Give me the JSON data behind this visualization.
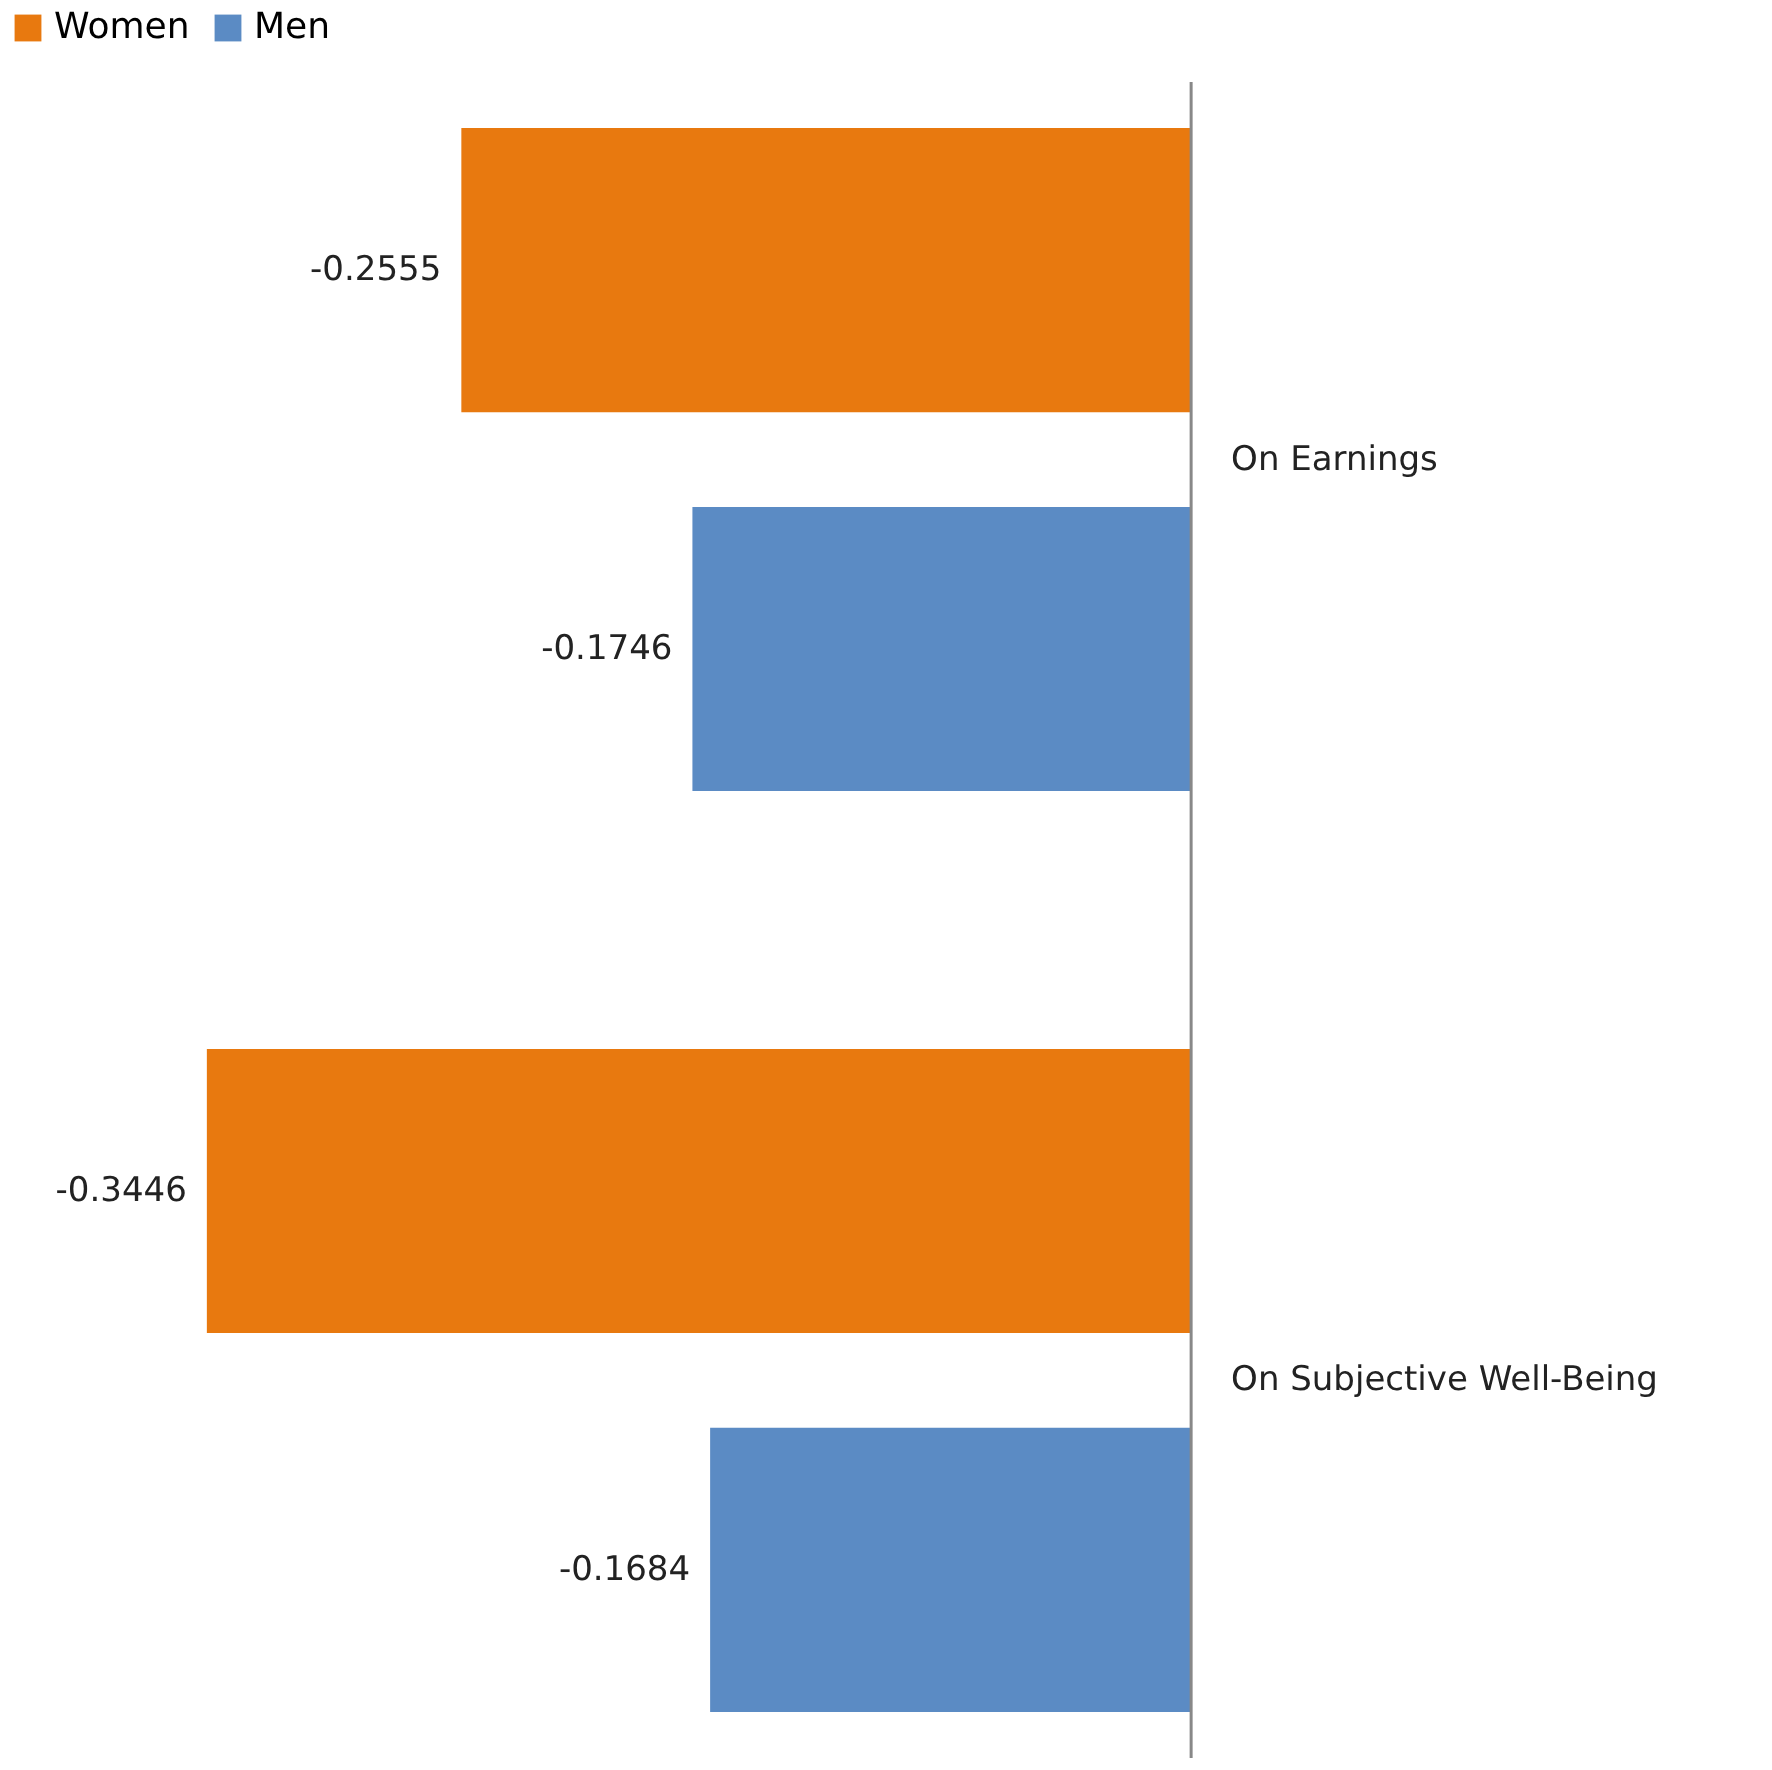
{
  "chart_data": {
    "type": "bar",
    "orientation": "horizontal",
    "categories": [
      "On Earnings",
      "On Subjective Well-Being"
    ],
    "series": [
      {
        "name": "Women",
        "color": "#e8790f",
        "values": [
          -0.2555,
          -0.3446
        ]
      },
      {
        "name": "Men",
        "color": "#5b8bc4",
        "values": [
          -0.1746,
          -0.1684
        ]
      }
    ],
    "data_labels": true,
    "legend": "top",
    "tick_labels": "y"
  }
}
